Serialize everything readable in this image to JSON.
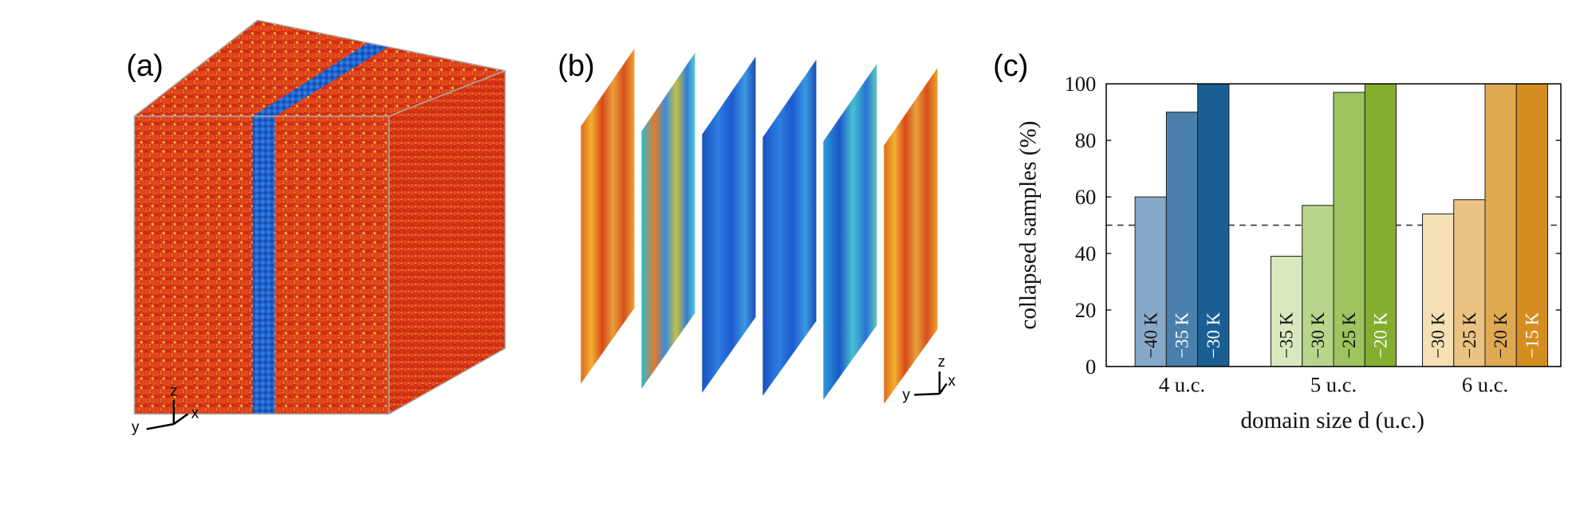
{
  "panel_labels": [
    "(a)",
    "(b)",
    "(c)"
  ],
  "triads": [
    [
      "z",
      "y",
      "x"
    ],
    [
      "z",
      "y",
      "x"
    ]
  ],
  "chart_data": {
    "type": "grouped-bar",
    "ylabel": "collapsed samples (%)",
    "xlabel": "domain size d (u.c.)",
    "ylim": [
      0,
      100
    ],
    "yticks": [
      0,
      20,
      40,
      60,
      80,
      100
    ],
    "reference_line": 50,
    "groups": [
      {
        "category": "4 u.c.",
        "bars": [
          {
            "label": "−40 K",
            "value": 60,
            "color": "#86a9c9"
          },
          {
            "label": "−35 K",
            "value": 90,
            "color": "#4a7fab"
          },
          {
            "label": "−30 K",
            "value": 100,
            "color": "#1a5f94"
          }
        ]
      },
      {
        "category": "5 u.c.",
        "bars": [
          {
            "label": "−35 K",
            "value": 39,
            "color": "#d9e8bd"
          },
          {
            "label": "−30 K",
            "value": 57,
            "color": "#b8d58c"
          },
          {
            "label": "−25 K",
            "value": 97,
            "color": "#9dc45e"
          },
          {
            "label": "−20 K",
            "value": 100,
            "color": "#84ae2d"
          }
        ]
      },
      {
        "category": "6 u.c.",
        "bars": [
          {
            "label": "−30 K",
            "value": 54,
            "color": "#f5dfb5"
          },
          {
            "label": "−25 K",
            "value": 59,
            "color": "#eac282"
          },
          {
            "label": "−20 K",
            "value": 100,
            "color": "#dfa951"
          },
          {
            "label": "−15 K",
            "value": 100,
            "color": "#d68d1f"
          }
        ]
      }
    ]
  }
}
